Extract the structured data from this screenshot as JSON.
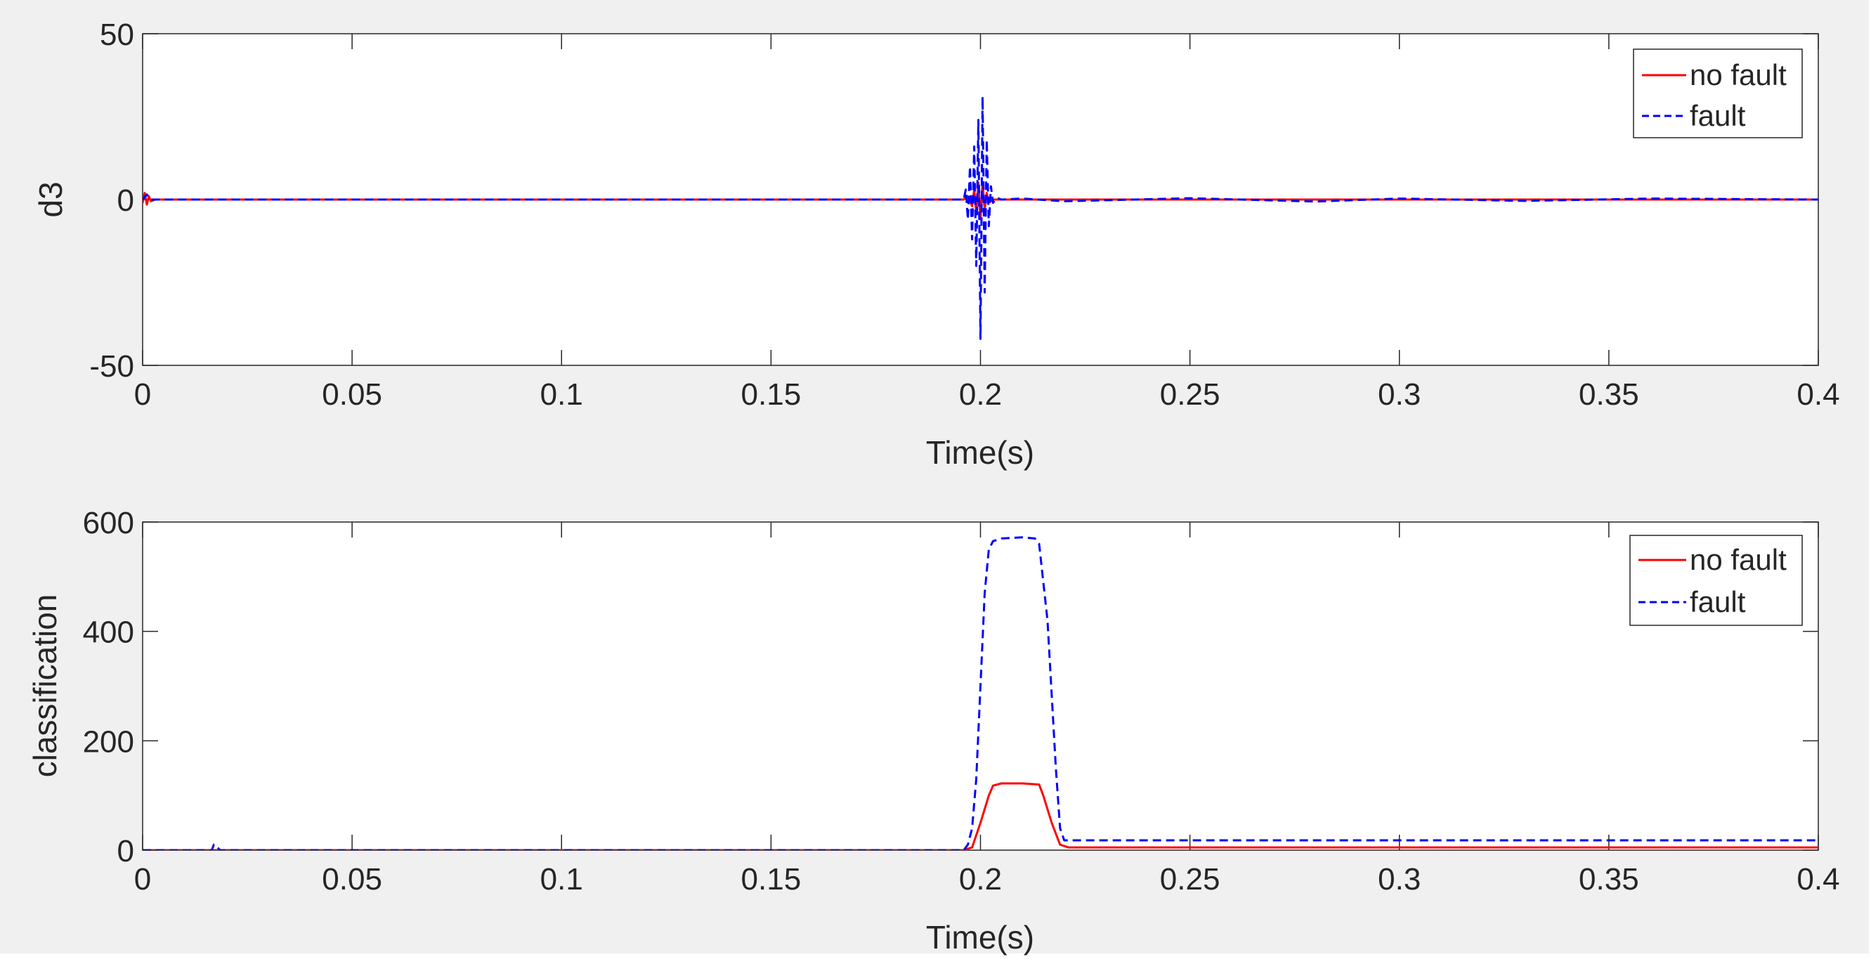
{
  "chart_data": [
    {
      "type": "line",
      "xlabel": "Time(s)",
      "ylabel": "d3",
      "xlim": [
        0,
        0.4
      ],
      "ylim": [
        -50,
        50
      ],
      "xticks": [
        "0",
        "0.05",
        "0.1",
        "0.15",
        "0.2",
        "0.25",
        "0.3",
        "0.35",
        "0.4"
      ],
      "yticks": [
        "-50",
        "0",
        "50"
      ],
      "legend_position": "top-right",
      "series": [
        {
          "name": "no fault",
          "color": "#ff0000",
          "dash": "solid",
          "x": [
            0,
            0.0005,
            0.001,
            0.0015,
            0.002,
            0.003,
            0.196,
            0.197,
            0.198,
            0.1985,
            0.199,
            0.1995,
            0.2,
            0.2005,
            0.201,
            0.2015,
            0.202,
            0.203,
            0.4
          ],
          "y": [
            -1,
            2,
            -1.5,
            1,
            -0.5,
            0,
            0,
            1,
            -2,
            3,
            -4,
            5,
            -6,
            5,
            -3,
            2,
            -1,
            0,
            0
          ]
        },
        {
          "name": "fault",
          "color": "#0000ff",
          "dash": "dashed",
          "x": [
            0,
            0.001,
            0.002,
            0.196,
            0.1965,
            0.197,
            0.1975,
            0.198,
            0.1985,
            0.199,
            0.1995,
            0.2,
            0.2005,
            0.201,
            0.2015,
            0.202,
            0.2025,
            0.203,
            0.204,
            0.205,
            0.21,
            0.22,
            0.25,
            0.28,
            0.3,
            0.33,
            0.36,
            0.4
          ],
          "y": [
            0,
            1.5,
            0,
            0,
            3,
            -6,
            10,
            -12,
            16,
            -20,
            24,
            -42,
            31,
            -28,
            18,
            -8,
            4,
            -1,
            0.5,
            0,
            0.3,
            -0.5,
            0.4,
            -0.6,
            0.3,
            -0.4,
            0.3,
            0
          ]
        }
      ]
    },
    {
      "type": "line",
      "xlabel": "Time(s)",
      "ylabel": "classification",
      "xlim": [
        0,
        0.4
      ],
      "ylim": [
        0,
        600
      ],
      "xticks": [
        "0",
        "0.05",
        "0.1",
        "0.15",
        "0.2",
        "0.25",
        "0.3",
        "0.35",
        "0.4"
      ],
      "yticks": [
        "0",
        "200",
        "400",
        "600"
      ],
      "legend_position": "top-right",
      "series": [
        {
          "name": "no fault",
          "color": "#ff0000",
          "dash": "solid",
          "x": [
            0,
            0.196,
            0.198,
            0.2,
            0.202,
            0.203,
            0.205,
            0.21,
            0.214,
            0.215,
            0.217,
            0.219,
            0.221,
            0.4
          ],
          "y": [
            0,
            0,
            5,
            50,
            100,
            118,
            122,
            122,
            120,
            100,
            50,
            10,
            5,
            5
          ]
        },
        {
          "name": "fault",
          "color": "#0000ff",
          "dash": "dashed",
          "x": [
            0,
            0.0165,
            0.017,
            0.0175,
            0.018,
            0.0185,
            0.196,
            0.197,
            0.198,
            0.199,
            0.2,
            0.201,
            0.202,
            0.203,
            0.205,
            0.21,
            0.213,
            0.214,
            0.216,
            0.218,
            0.219,
            0.22,
            0.4
          ],
          "y": [
            0,
            0,
            10,
            8,
            4,
            0,
            0,
            10,
            40,
            130,
            300,
            470,
            550,
            565,
            570,
            572,
            570,
            560,
            420,
            150,
            40,
            18,
            18
          ]
        }
      ]
    }
  ]
}
